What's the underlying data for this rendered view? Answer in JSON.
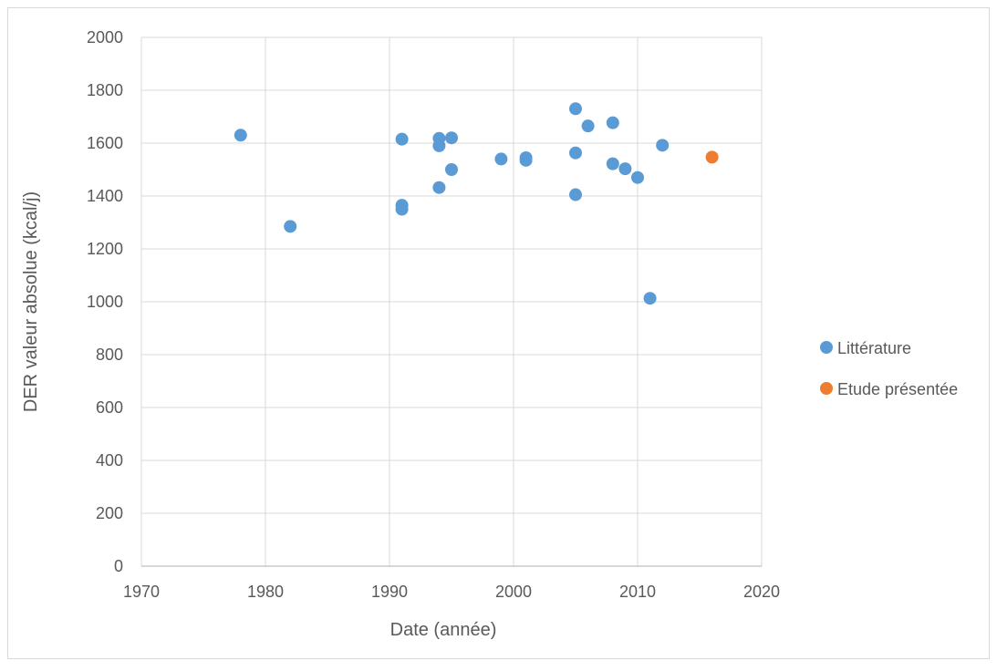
{
  "chart_data": {
    "type": "scatter",
    "title": "",
    "xlabel": "Date (année)",
    "ylabel": "DER valeur absolue (kcal/j)",
    "xlim": [
      1970,
      2020
    ],
    "ylim": [
      0,
      2000
    ],
    "x_ticks": [
      1970,
      1980,
      1990,
      2000,
      2010,
      2020
    ],
    "y_ticks": [
      0,
      200,
      400,
      600,
      800,
      1000,
      1200,
      1400,
      1600,
      1800,
      2000
    ],
    "grid": true,
    "legend_position": "right",
    "series": [
      {
        "name": "Littérature",
        "color": "#5B9BD5",
        "points": [
          {
            "x": 1978,
            "y": 1630
          },
          {
            "x": 1982,
            "y": 1285
          },
          {
            "x": 1991,
            "y": 1615
          },
          {
            "x": 1991,
            "y": 1365
          },
          {
            "x": 1991,
            "y": 1350
          },
          {
            "x": 1994,
            "y": 1618
          },
          {
            "x": 1994,
            "y": 1590
          },
          {
            "x": 1994,
            "y": 1432
          },
          {
            "x": 1995,
            "y": 1620
          },
          {
            "x": 1995,
            "y": 1500
          },
          {
            "x": 1999,
            "y": 1540
          },
          {
            "x": 2001,
            "y": 1545
          },
          {
            "x": 2001,
            "y": 1535
          },
          {
            "x": 2005,
            "y": 1730
          },
          {
            "x": 2005,
            "y": 1563
          },
          {
            "x": 2005,
            "y": 1405
          },
          {
            "x": 2006,
            "y": 1665
          },
          {
            "x": 2008,
            "y": 1677
          },
          {
            "x": 2008,
            "y": 1522
          },
          {
            "x": 2009,
            "y": 1503
          },
          {
            "x": 2010,
            "y": 1470
          },
          {
            "x": 2011,
            "y": 1013
          },
          {
            "x": 2012,
            "y": 1592
          }
        ]
      },
      {
        "name": "Etude présentée",
        "color": "#ED7D31",
        "points": [
          {
            "x": 2016,
            "y": 1547
          }
        ]
      }
    ]
  }
}
